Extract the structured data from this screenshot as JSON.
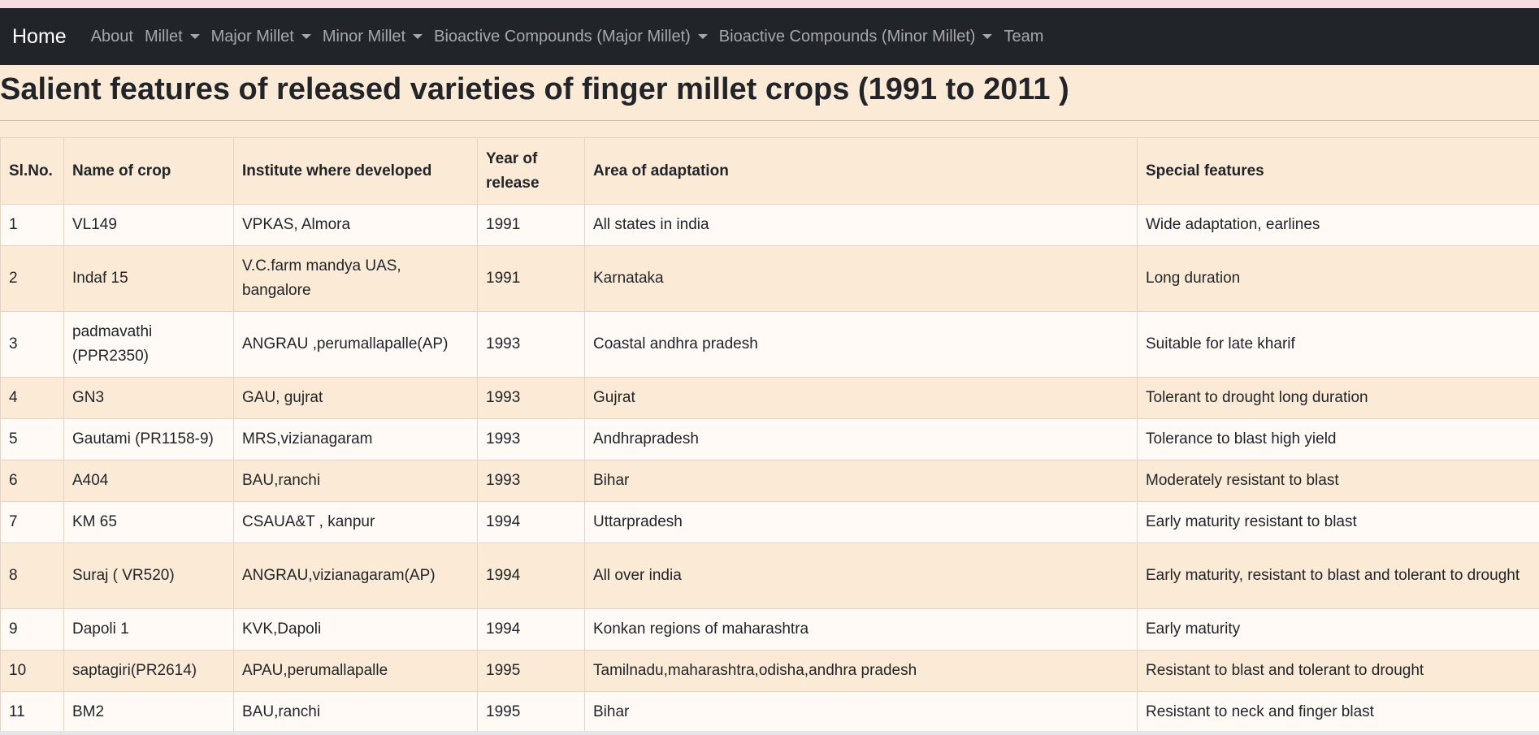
{
  "nav": {
    "brand": "Home",
    "items": [
      {
        "label": "About",
        "dropdown": false
      },
      {
        "label": "Millet",
        "dropdown": true
      },
      {
        "label": "Major Millet",
        "dropdown": true
      },
      {
        "label": "Minor Millet",
        "dropdown": true
      },
      {
        "label": "Bioactive Compounds (Major Millet)",
        "dropdown": true
      },
      {
        "label": "Bioactive Compounds (Minor Millet)",
        "dropdown": true
      },
      {
        "label": "Team",
        "dropdown": false
      }
    ]
  },
  "page": {
    "title": "Salient features of released varieties of finger millet crops (1991 to 2011 )"
  },
  "table": {
    "headers": [
      "Sl.No.",
      "Name of crop",
      "Institute where developed",
      "Year of release",
      "Area of adaptation",
      "Special features"
    ],
    "rows": [
      [
        "1",
        "VL149",
        "VPKAS, Almora",
        "1991",
        "All states in india",
        "Wide adaptation, earlines"
      ],
      [
        "2",
        "Indaf 15",
        "V.C.farm mandya UAS, bangalore",
        "1991",
        "Karnataka",
        "Long duration"
      ],
      [
        "3",
        "padmavathi (PPR2350)",
        "ANGRAU ,perumallapalle(AP)",
        "1993",
        "Coastal andhra pradesh",
        "Suitable for late kharif"
      ],
      [
        "4",
        "GN3",
        "GAU, gujrat",
        "1993",
        "Gujrat",
        "Tolerant to drought long duration"
      ],
      [
        "5",
        "Gautami (PR1158-9)",
        "MRS,vizianagaram",
        "1993",
        "Andhrapradesh",
        "Tolerance to blast high yield"
      ],
      [
        "6",
        "A404",
        "BAU,ranchi",
        "1993",
        "Bihar",
        "Moderately resistant to blast"
      ],
      [
        "7",
        "KM 65",
        "CSAUA&T , kanpur",
        "1994",
        "Uttarpradesh",
        "Early maturity resistant to blast"
      ],
      [
        "8",
        "Suraj ( VR520)",
        "ANGRAU,vizianagaram(AP)",
        "1994",
        "All over india",
        "Early maturity, resistant to blast and tolerant to drought"
      ],
      [
        "9",
        "Dapoli 1",
        "KVK,Dapoli",
        "1994",
        "Konkan regions of maharashtra",
        "Early maturity"
      ],
      [
        "10",
        "saptagiri(PR2614)",
        "APAU,perumallapalle",
        "1995",
        "Tamilnadu,maharashtra,odisha,andhra pradesh",
        "Resistant to blast and tolerant to drought"
      ],
      [
        "11",
        "BM2",
        "BAU,ranchi",
        "1995",
        "Bihar",
        "Resistant to neck and finger blast"
      ]
    ]
  }
}
